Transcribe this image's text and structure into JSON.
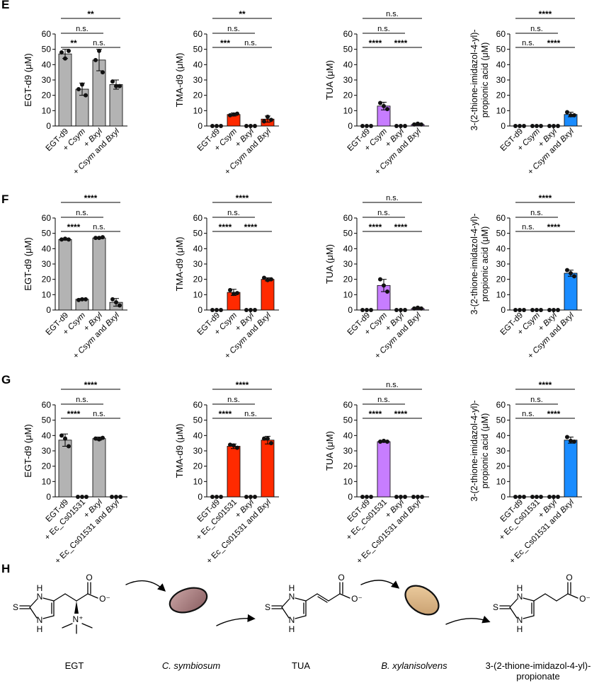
{
  "panel_letters": [
    "E",
    "F",
    "G",
    "H"
  ],
  "colors": {
    "gray": "#b3b3b3",
    "red": "#ff2a00",
    "purple": "#c77dff",
    "blue": "#1a8cff"
  },
  "chart_data": [
    {
      "id": "E1",
      "panel": "E",
      "type": "bar",
      "ylabel": "EGT-d9 (μM)",
      "ylim": [
        0,
        60
      ],
      "yticks": [
        0,
        10,
        20,
        30,
        40,
        50,
        60
      ],
      "categories": [
        "EGT-d9",
        "+ Csym",
        "+ Bxyl",
        "+ Csym and Bxyl"
      ],
      "values": [
        47,
        24,
        43,
        27
      ],
      "errors": [
        3,
        4,
        7,
        3
      ],
      "points": [
        [
          48,
          49,
          44
        ],
        [
          24,
          20,
          27
        ],
        [
          43,
          35,
          49
        ],
        [
          29,
          26,
          26
        ]
      ],
      "color_key": "gray",
      "sig": [
        {
          "from": 0,
          "to": 3,
          "label": "**"
        },
        {
          "from": 0,
          "to": 2,
          "label": "n.s."
        },
        {
          "from": 0,
          "to": 1,
          "label": "**"
        },
        {
          "from": 1,
          "to": 3,
          "label": "n.s."
        }
      ]
    },
    {
      "id": "E2",
      "panel": "E",
      "type": "bar",
      "ylabel": "TMA-d9 (μM)",
      "ylim": [
        0,
        60
      ],
      "yticks": [
        0,
        10,
        20,
        30,
        40,
        50,
        60
      ],
      "categories": [
        "EGT-d9",
        "+ Csym",
        "+ Bxyl",
        "+ Csym and Bxyl"
      ],
      "values": [
        0,
        7.5,
        0,
        4.5
      ],
      "errors": [
        0,
        1,
        0,
        2
      ],
      "points": [
        [
          0,
          0,
          0
        ],
        [
          7,
          8,
          7.5
        ],
        [
          0,
          0,
          0
        ],
        [
          3,
          4,
          6
        ]
      ],
      "color_key": "red",
      "sig": [
        {
          "from": 0,
          "to": 3,
          "label": "**"
        },
        {
          "from": 0,
          "to": 2,
          "label": "n.s."
        },
        {
          "from": 0,
          "to": 1,
          "label": "***"
        },
        {
          "from": 1,
          "to": 3,
          "label": "n.s."
        }
      ]
    },
    {
      "id": "E3",
      "panel": "E",
      "type": "bar",
      "ylabel": "TUA (μM)",
      "ylim": [
        0,
        60
      ],
      "yticks": [
        0,
        10,
        20,
        30,
        40,
        50,
        60
      ],
      "categories": [
        "EGT-d9",
        "+ Csym",
        "+ Bxyl",
        "+ Csym and Bxyl"
      ],
      "values": [
        0,
        13,
        0,
        1
      ],
      "errors": [
        0,
        2.5,
        0,
        0.5
      ],
      "points": [
        [
          0,
          0,
          0
        ],
        [
          15,
          11,
          13
        ],
        [
          0,
          0,
          0
        ],
        [
          1,
          1,
          1.5
        ]
      ],
      "color_key": "purple",
      "sig": [
        {
          "from": 0,
          "to": 3,
          "label": "n.s."
        },
        {
          "from": 0,
          "to": 2,
          "label": "n.s."
        },
        {
          "from": 0,
          "to": 1,
          "label": "****"
        },
        {
          "from": 1,
          "to": 3,
          "label": "****"
        }
      ]
    },
    {
      "id": "E4",
      "panel": "E",
      "type": "bar",
      "ylabel": [
        "3-(2-thione-imidazol-4-yl)-",
        "propionic acid (μM)"
      ],
      "ylim": [
        0,
        60
      ],
      "yticks": [
        0,
        10,
        20,
        30,
        40,
        50,
        60
      ],
      "categories": [
        "EGT-d9",
        "+ Csym",
        "+ Bxyl",
        "+ Csym and Bxyl"
      ],
      "values": [
        0,
        0,
        0,
        7.5
      ],
      "errors": [
        0,
        0,
        0,
        1.5
      ],
      "points": [
        [
          0,
          0,
          0
        ],
        [
          0,
          0,
          0
        ],
        [
          0,
          0,
          0
        ],
        [
          9,
          7,
          7
        ]
      ],
      "color_key": "blue",
      "sig": [
        {
          "from": 0,
          "to": 3,
          "label": "****"
        },
        {
          "from": 0,
          "to": 2,
          "label": "n.s."
        },
        {
          "from": 0,
          "to": 1,
          "label": "n.s."
        },
        {
          "from": 1,
          "to": 3,
          "label": "****"
        }
      ]
    },
    {
      "id": "F1",
      "panel": "F",
      "type": "bar",
      "ylabel": "EGT-d9 (μM)",
      "ylim": [
        0,
        60
      ],
      "yticks": [
        0,
        10,
        20,
        30,
        40,
        50,
        60
      ],
      "categories": [
        "EGT-d9",
        "+ Csym",
        "+ Bxyl",
        "+ Csym and Bxyl"
      ],
      "values": [
        46,
        7,
        47,
        5
      ],
      "errors": [
        0.5,
        0.5,
        0.5,
        2.5
      ],
      "points": [
        [
          46,
          46,
          46.5
        ],
        [
          6.5,
          7,
          7
        ],
        [
          47,
          47.5,
          47
        ],
        [
          7,
          3,
          5
        ]
      ],
      "color_key": "gray",
      "sig": [
        {
          "from": 0,
          "to": 3,
          "label": "****"
        },
        {
          "from": 0,
          "to": 2,
          "label": "n.s."
        },
        {
          "from": 0,
          "to": 1,
          "label": "****"
        },
        {
          "from": 1,
          "to": 3,
          "label": "n.s."
        }
      ]
    },
    {
      "id": "F2",
      "panel": "F",
      "type": "bar",
      "ylabel": "TMA-d9 (μM)",
      "ylim": [
        0,
        60
      ],
      "yticks": [
        0,
        10,
        20,
        30,
        40,
        50,
        60
      ],
      "categories": [
        "EGT-d9",
        "+ Csym",
        "+ Bxyl",
        "+ Csym and Bxyl"
      ],
      "values": [
        0,
        11.5,
        0,
        20
      ],
      "errors": [
        0,
        2,
        0,
        1
      ],
      "points": [
        [
          0,
          0,
          0
        ],
        [
          13,
          11,
          10.5
        ],
        [
          0,
          0,
          0
        ],
        [
          21,
          20,
          19.5
        ]
      ],
      "color_key": "red",
      "sig": [
        {
          "from": 0,
          "to": 3,
          "label": "****"
        },
        {
          "from": 0,
          "to": 2,
          "label": "n.s."
        },
        {
          "from": 0,
          "to": 1,
          "label": "****"
        },
        {
          "from": 1,
          "to": 3,
          "label": "****"
        }
      ]
    },
    {
      "id": "F3",
      "panel": "F",
      "type": "bar",
      "ylabel": "TUA (μM)",
      "ylim": [
        0,
        60
      ],
      "yticks": [
        0,
        10,
        20,
        30,
        40,
        50,
        60
      ],
      "categories": [
        "EGT-d9",
        "+ Csym",
        "+ Bxyl",
        "+ Csym and Bxyl"
      ],
      "values": [
        0,
        16,
        0,
        1
      ],
      "errors": [
        0,
        4,
        0,
        0.5
      ],
      "points": [
        [
          0,
          0,
          0
        ],
        [
          20,
          12,
          16
        ],
        [
          0,
          0,
          0
        ],
        [
          1,
          1,
          1.5
        ]
      ],
      "color_key": "purple",
      "sig": [
        {
          "from": 0,
          "to": 3,
          "label": "n.s."
        },
        {
          "from": 0,
          "to": 2,
          "label": "n.s."
        },
        {
          "from": 0,
          "to": 1,
          "label": "****"
        },
        {
          "from": 1,
          "to": 3,
          "label": "****"
        }
      ]
    },
    {
      "id": "F4",
      "panel": "F",
      "type": "bar",
      "ylabel": [
        "3-(2-thione-imidazol-4-yl)-",
        "propionic acid (μM)"
      ],
      "ylim": [
        0,
        60
      ],
      "yticks": [
        0,
        10,
        20,
        30,
        40,
        50,
        60
      ],
      "categories": [
        "EGT-d9",
        "+ Csym",
        "+ Bxyl",
        "+ Csym and Bxyl"
      ],
      "values": [
        0,
        0,
        0,
        24
      ],
      "errors": [
        0,
        0,
        0,
        2
      ],
      "points": [
        [
          0,
          0,
          0
        ],
        [
          0,
          0,
          0
        ],
        [
          0,
          0,
          0
        ],
        [
          26,
          22,
          24
        ]
      ],
      "color_key": "blue",
      "sig": [
        {
          "from": 0,
          "to": 3,
          "label": "****"
        },
        {
          "from": 0,
          "to": 2,
          "label": "n.s."
        },
        {
          "from": 0,
          "to": 1,
          "label": "n.s."
        },
        {
          "from": 1,
          "to": 3,
          "label": "****"
        }
      ]
    },
    {
      "id": "G1",
      "panel": "G",
      "type": "bar",
      "ylabel": "EGT-d9 (μM)",
      "ylim": [
        0,
        60
      ],
      "yticks": [
        0,
        10,
        20,
        30,
        40,
        50,
        60
      ],
      "categories": [
        "EGT-d9",
        "+ Ec_Cs01531",
        "+ Bxyl",
        "+ Ec_Cs01531 and Bxyl"
      ],
      "values": [
        37,
        0,
        38,
        0
      ],
      "errors": [
        4,
        0,
        1,
        0
      ],
      "points": [
        [
          40,
          33,
          38
        ],
        [
          0,
          0,
          0
        ],
        [
          38,
          38.5,
          37.5
        ],
        [
          0,
          0,
          0
        ]
      ],
      "color_key": "gray",
      "sig": [
        {
          "from": 0,
          "to": 3,
          "label": "****"
        },
        {
          "from": 0,
          "to": 2,
          "label": "n.s."
        },
        {
          "from": 0,
          "to": 1,
          "label": "****"
        },
        {
          "from": 1,
          "to": 3,
          "label": "n.s."
        }
      ]
    },
    {
      "id": "G2",
      "panel": "G",
      "type": "bar",
      "ylabel": "TMA-d9 (μM)",
      "ylim": [
        0,
        60
      ],
      "yticks": [
        0,
        10,
        20,
        30,
        40,
        50,
        60
      ],
      "categories": [
        "EGT-d9",
        "+ Ec_Cs01531",
        "+ Bxyl",
        "+ Ec_Cs01531 and Bxyl"
      ],
      "values": [
        0,
        33,
        0,
        37
      ],
      "errors": [
        0,
        1.5,
        0,
        2.5
      ],
      "points": [
        [
          0,
          0,
          0
        ],
        [
          34,
          32,
          33.5
        ],
        [
          0,
          0,
          0
        ],
        [
          38,
          35,
          38
        ]
      ],
      "color_key": "red",
      "sig": [
        {
          "from": 0,
          "to": 3,
          "label": "****"
        },
        {
          "from": 0,
          "to": 2,
          "label": "n.s."
        },
        {
          "from": 0,
          "to": 1,
          "label": "****"
        },
        {
          "from": 1,
          "to": 3,
          "label": "n.s."
        }
      ]
    },
    {
      "id": "G3",
      "panel": "G",
      "type": "bar",
      "ylabel": "TUA (μM)",
      "ylim": [
        0,
        60
      ],
      "yticks": [
        0,
        10,
        20,
        30,
        40,
        50,
        60
      ],
      "categories": [
        "EGT-d9",
        "+ Ec_Cs01531",
        "+ Bxyl",
        "+ Ec_Cs01531 and Bxyl"
      ],
      "values": [
        0,
        36,
        0,
        0
      ],
      "errors": [
        0,
        0.5,
        0,
        0
      ],
      "points": [
        [
          0,
          0,
          0
        ],
        [
          36,
          36,
          36.5
        ],
        [
          0,
          0,
          0
        ],
        [
          0,
          0,
          0
        ]
      ],
      "color_key": "purple",
      "sig": [
        {
          "from": 0,
          "to": 3,
          "label": "n.s."
        },
        {
          "from": 0,
          "to": 2,
          "label": "n.s."
        },
        {
          "from": 0,
          "to": 1,
          "label": "****"
        },
        {
          "from": 1,
          "to": 3,
          "label": "****"
        }
      ]
    },
    {
      "id": "G4",
      "panel": "G",
      "type": "bar",
      "ylabel": [
        "3-(2-thione-imidazol-4-yl)-",
        "propionic acid (μM)"
      ],
      "ylim": [
        0,
        60
      ],
      "yticks": [
        0,
        10,
        20,
        30,
        40,
        50,
        60
      ],
      "categories": [
        "EGT-d9",
        "+ Ec_Cs01531",
        "+ Bxyl",
        "+ Ec_Cs01531 and Bxyl"
      ],
      "values": [
        0,
        0,
        0,
        37
      ],
      "errors": [
        0,
        0,
        0,
        2
      ],
      "points": [
        [
          0,
          0,
          0
        ],
        [
          0,
          0,
          0
        ],
        [
          0,
          0,
          0
        ],
        [
          39,
          36,
          36.5
        ]
      ],
      "color_key": "blue",
      "sig": [
        {
          "from": 0,
          "to": 3,
          "label": "****"
        },
        {
          "from": 0,
          "to": 2,
          "label": "n.s."
        },
        {
          "from": 0,
          "to": 1,
          "label": "n.s."
        },
        {
          "from": 1,
          "to": 3,
          "label": "****"
        }
      ]
    }
  ],
  "pathway": {
    "compounds": [
      "EGT",
      "TUA",
      "3-(2-thione-imidazol-4-yl)-propionate"
    ],
    "organisms": [
      "C. symbiosum",
      "B. xylanisolvens"
    ],
    "final_label_lines": [
      "3-(2-thione-imidazol-4-yl)-",
      "propionate"
    ],
    "atoms": {
      "S": "S",
      "N": "N",
      "H": "H",
      "O": "O",
      "Ominus": "O⁻",
      "Nplus": "N⁺"
    }
  }
}
